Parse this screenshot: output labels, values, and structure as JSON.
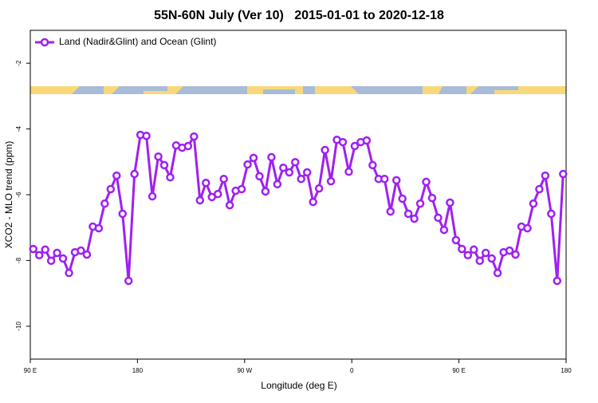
{
  "chart_data": {
    "type": "line",
    "title": "55N-60N July (Ver 10)   2015-01-01 to 2020-12-18",
    "xlabel": "Longitude (deg E)",
    "ylabel": "XCO2 - MLO trend (ppm)",
    "xlim": [
      90,
      540
    ],
    "ylim": [
      -11,
      -1
    ],
    "xticks": [
      {
        "value": 90,
        "label": "90 E"
      },
      {
        "value": 180,
        "label": "180"
      },
      {
        "value": 270,
        "label": "90 W"
      },
      {
        "value": 360,
        "label": "0"
      },
      {
        "value": 450,
        "label": "90 E"
      },
      {
        "value": 540,
        "label": "180"
      }
    ],
    "yticks": [
      -2,
      -4,
      -6,
      -8,
      -10
    ],
    "legend": "top-left",
    "x": [
      92.5,
      97.5,
      102.5,
      107.5,
      112.5,
      117.5,
      122.5,
      127.5,
      132.5,
      137.5,
      142.5,
      147.5,
      152.5,
      157.5,
      162.5,
      167.5,
      172.5,
      177.5,
      182.5,
      187.5,
      192.5,
      197.5,
      202.5,
      207.5,
      212.5,
      217.5,
      222.5,
      227.5,
      232.5,
      237.5,
      242.5,
      247.5,
      252.5,
      257.5,
      262.5,
      267.5,
      272.5,
      277.5,
      282.5,
      287.5,
      292.5,
      297.5,
      302.5,
      307.5,
      312.5,
      317.5,
      322.5,
      327.5,
      332.5,
      337.5,
      342.5,
      347.5,
      352.5,
      357.5,
      362.5,
      367.5,
      372.5,
      377.5,
      382.5,
      387.5,
      392.5,
      397.5,
      402.5,
      407.5,
      412.5,
      417.5,
      422.5,
      427.5,
      432.5,
      437.5,
      442.5,
      447.5,
      452.5,
      457.5,
      462.5,
      467.5,
      472.5,
      477.5,
      482.5,
      487.5,
      492.5,
      497.5,
      502.5,
      507.5,
      512.5,
      517.5,
      522.5,
      527.5,
      532.5,
      537.5
    ],
    "series": [
      {
        "name": "Land (Nadir&Glint) and Ocean (Glint)",
        "color": "#a020f0",
        "values": [
          -7.65,
          -7.84,
          -7.67,
          -8.01,
          -7.77,
          -7.94,
          -8.38,
          -7.75,
          -7.7,
          -7.82,
          -6.97,
          -7.02,
          -6.27,
          -5.83,
          -5.42,
          -6.58,
          -8.62,
          -5.37,
          -4.18,
          -4.21,
          -6.05,
          -4.84,
          -5.1,
          -5.47,
          -4.5,
          -4.57,
          -4.52,
          -4.23,
          -6.17,
          -5.64,
          -6.07,
          -5.98,
          -5.52,
          -6.32,
          -5.88,
          -5.83,
          -5.08,
          -4.88,
          -5.44,
          -5.9,
          -4.86,
          -5.68,
          -5.18,
          -5.32,
          -5.01,
          -5.52,
          -5.32,
          -6.22,
          -5.81,
          -4.64,
          -5.59,
          -4.33,
          -4.4,
          -5.3,
          -4.52,
          -4.4,
          -4.35,
          -5.1,
          -5.52,
          -5.52,
          -6.51,
          -5.56,
          -6.12,
          -6.58,
          -6.73,
          -6.27,
          -5.61,
          -6.1,
          -6.7,
          -7.07,
          -6.24,
          -7.38,
          -7.65,
          -7.84,
          -7.67,
          -8.01,
          -7.77,
          -7.94,
          -8.38,
          -7.75,
          -7.7,
          -7.82,
          -6.97,
          -7.02,
          -6.27,
          -5.83,
          -5.42,
          -6.58,
          -8.62,
          -5.37
        ]
      }
    ]
  }
}
